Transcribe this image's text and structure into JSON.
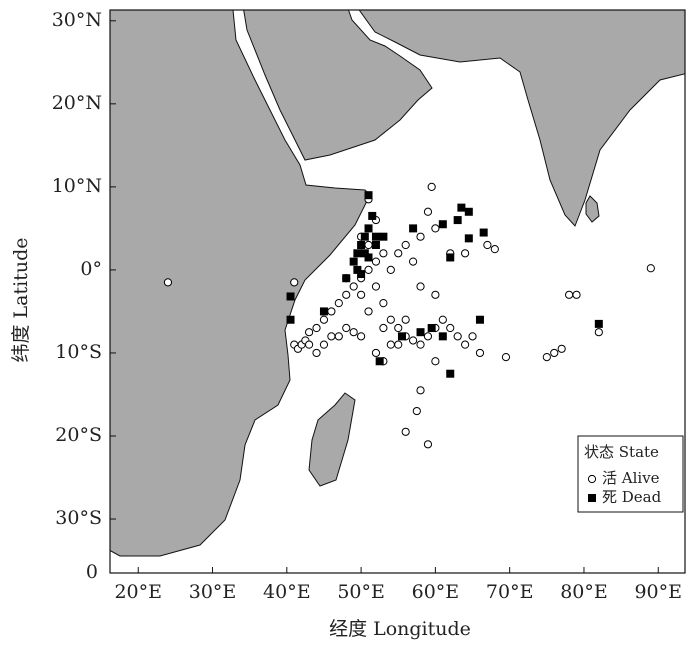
{
  "chart_data": {
    "type": "scatter",
    "x_label": "经度 Longitude",
    "y_label": "纬度 Latitude",
    "corner_label": "0",
    "xlim": [
      16.2,
      93.6
    ],
    "ylim": [
      -36.5,
      31.3
    ],
    "xticks": [
      {
        "value": 20,
        "label": "20°E"
      },
      {
        "value": 30,
        "label": "30°E"
      },
      {
        "value": 40,
        "label": "40°E"
      },
      {
        "value": 50,
        "label": "50°E"
      },
      {
        "value": 60,
        "label": "60°E"
      },
      {
        "value": 70,
        "label": "70°E"
      },
      {
        "value": 80,
        "label": "80°E"
      },
      {
        "value": 90,
        "label": "90°E"
      }
    ],
    "yticks": [
      {
        "value": 30,
        "label": "30°N"
      },
      {
        "value": 20,
        "label": "20°N"
      },
      {
        "value": 10,
        "label": "10°N"
      },
      {
        "value": 0,
        "label": "0°"
      },
      {
        "value": -10,
        "label": "10°S"
      },
      {
        "value": -20,
        "label": "20°S"
      },
      {
        "value": -30,
        "label": "30°S"
      }
    ],
    "legend_title": "状态 State",
    "legend_position": "lower right",
    "series": [
      {
        "name": "活 Alive",
        "color": "#ffffff",
        "marker": "circle",
        "x": [
          24,
          89,
          41,
          41.5,
          42,
          42.5,
          43,
          44,
          45,
          46,
          47,
          48,
          49,
          50,
          51,
          52,
          53,
          51,
          50,
          52,
          53,
          54,
          55,
          56,
          57,
          58,
          59,
          60,
          61,
          62,
          63,
          64,
          65,
          66,
          60,
          58,
          57,
          58,
          59,
          59.5,
          60,
          62,
          64,
          67,
          68,
          69.5,
          75,
          76,
          77,
          78,
          79,
          82,
          57.5,
          58,
          56,
          59,
          60,
          46,
          47,
          48,
          49,
          50,
          45,
          44,
          43,
          52,
          53,
          55,
          56,
          51,
          50,
          48,
          54,
          55,
          56,
          41,
          52,
          51,
          53,
          54
        ],
        "y": [
          -1.5,
          0.2,
          -9,
          -9.5,
          -9,
          -8.5,
          -7.5,
          -7,
          -6,
          -5,
          -4,
          -3,
          -2,
          -1,
          0,
          1,
          2,
          3,
          4,
          -2,
          -4,
          -6,
          -7,
          -8,
          -8.5,
          -9,
          -8,
          -7,
          -6,
          -7,
          -8,
          -9,
          -8,
          -10,
          -3,
          -2,
          1,
          4,
          7,
          10,
          5,
          2,
          2,
          3,
          2.5,
          -10.5,
          -10.5,
          -10,
          -9.5,
          -3,
          -3,
          -7.5,
          -17,
          -14.5,
          -19.5,
          -21,
          -11,
          -8,
          -8,
          -7,
          -7.5,
          -8,
          -9,
          -10,
          -9,
          -10,
          -11,
          -9,
          -6,
          -5,
          -3,
          -1,
          0,
          2,
          3,
          -1.5,
          6,
          8.5,
          -7,
          -9
        ]
      },
      {
        "name": "死 Dead",
        "color": "#000000",
        "marker": "square",
        "x": [
          40.5,
          40.5,
          49,
          49.5,
          50,
          50.5,
          51,
          51.5,
          49.5,
          50,
          51,
          52,
          50.5,
          51,
          52,
          53,
          48,
          57,
          61,
          63,
          63.5,
          64.5,
          66.5,
          64.5,
          62,
          66,
          62,
          58,
          59.5,
          52.5,
          82,
          61,
          45,
          55.5
        ],
        "y": [
          -3.2,
          -6,
          1,
          2,
          3,
          4,
          5,
          6.5,
          0,
          -0.5,
          1.5,
          3,
          2,
          9,
          4,
          4,
          -1,
          5,
          5.5,
          6,
          7.5,
          7,
          4.5,
          3.8,
          1.5,
          -6,
          -12.5,
          -7.5,
          -7,
          -11,
          -6.5,
          -8,
          -5,
          -8
        ]
      }
    ]
  }
}
